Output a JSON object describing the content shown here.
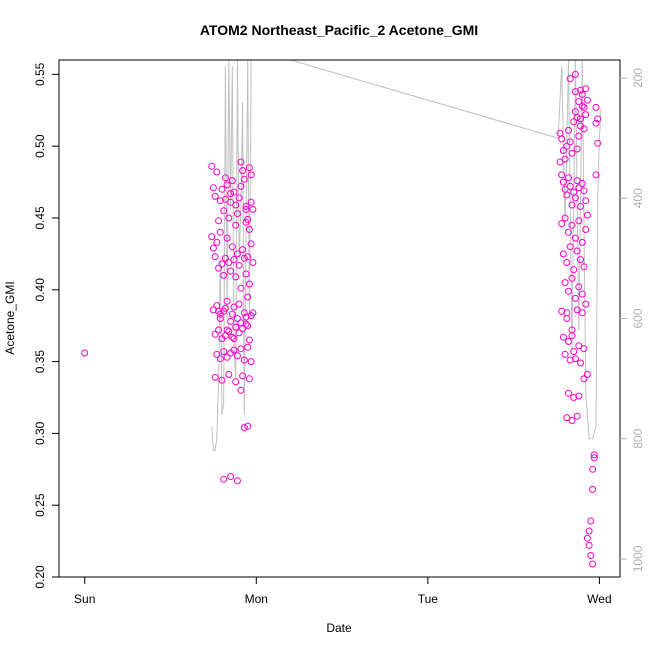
{
  "chart_data": {
    "type": "scatter",
    "title": "ATOM2 Northeast_Pacific_2 Acetone_GMI",
    "xlabel": "Date",
    "ylabel": "Acetone_GMI",
    "x_ticks": [
      "Sun",
      "Mon",
      "Tue",
      "Wed"
    ],
    "x_range_days": [
      -0.15,
      3.12
    ],
    "ylim": [
      0.2,
      0.56
    ],
    "y_ticks": [
      "0.20",
      "0.25",
      "0.30",
      "0.35",
      "0.40",
      "0.45",
      "0.50",
      "0.55"
    ],
    "y2_ticks": [
      "200",
      "400",
      "600",
      "800",
      "1000"
    ],
    "y2lim": [
      1030,
      170
    ],
    "y2_reversed": true,
    "grid": false,
    "colors": {
      "points": "#ff00cc",
      "pressure_line": "#c0c0c0",
      "axes": "#000000",
      "right_axis": "#b0b0b0"
    },
    "series": [
      {
        "x": [
          0.0,
          0.74,
          0.75,
          0.76,
          0.77,
          0.78,
          0.79,
          0.8,
          0.81,
          0.82,
          0.83,
          0.84,
          0.85,
          0.86,
          0.87,
          0.88,
          0.89,
          0.9,
          0.91,
          0.92,
          0.93,
          0.94,
          0.95,
          0.96,
          0.97,
          0.98,
          0.74,
          0.75,
          0.76,
          0.77,
          0.78,
          0.79,
          0.8,
          0.81,
          0.82,
          0.83,
          0.84,
          0.85,
          0.86,
          0.87,
          0.88,
          0.89,
          0.9,
          0.91,
          0.92,
          0.93,
          0.94,
          0.95,
          0.96,
          0.97,
          0.98,
          0.75,
          0.77,
          0.79,
          0.81,
          0.83,
          0.85,
          0.87,
          0.89,
          0.91,
          0.93,
          0.95,
          0.97,
          0.76,
          0.78,
          0.8,
          0.82,
          0.84,
          0.86,
          0.88,
          0.9,
          0.92,
          0.94,
          0.96,
          0.77,
          0.79,
          0.81,
          0.83,
          0.85,
          0.87,
          0.89,
          0.91,
          0.93,
          0.95,
          0.97,
          0.76,
          0.8,
          0.84,
          0.88,
          0.92,
          0.96,
          0.78,
          0.82,
          0.86,
          0.9,
          0.94,
          0.98,
          0.82,
          0.85,
          0.88,
          0.91,
          0.94,
          0.97,
          0.79,
          0.83,
          0.87,
          0.91,
          0.95,
          0.81,
          0.85,
          0.89,
          0.93,
          0.95,
          0.96,
          0.94,
          2.77,
          2.78,
          2.79,
          2.8,
          2.81,
          2.82,
          2.83,
          2.84,
          2.85,
          2.86,
          2.87,
          2.88,
          2.89,
          2.9,
          2.91,
          2.92,
          2.93,
          2.77,
          2.78,
          2.79,
          2.8,
          2.81,
          2.82,
          2.83,
          2.84,
          2.85,
          2.86,
          2.87,
          2.88,
          2.89,
          2.9,
          2.91,
          2.92,
          2.93,
          2.78,
          2.8,
          2.82,
          2.84,
          2.86,
          2.88,
          2.9,
          2.92,
          2.79,
          2.81,
          2.83,
          2.85,
          2.87,
          2.89,
          2.91,
          2.8,
          2.82,
          2.84,
          2.86,
          2.88,
          2.9,
          2.92,
          2.78,
          2.81,
          2.84,
          2.87,
          2.9,
          2.79,
          2.82,
          2.85,
          2.88,
          2.91,
          2.8,
          2.83,
          2.86,
          2.89,
          2.81,
          2.84,
          2.87,
          2.82,
          2.85,
          2.88,
          2.91,
          2.83,
          2.86,
          2.89,
          2.86,
          2.88,
          2.9,
          2.92,
          2.87,
          2.89,
          2.91,
          2.81,
          2.84,
          2.93,
          2.96,
          2.97,
          2.97,
          2.96,
          2.95,
          2.94,
          2.93,
          2.94,
          2.95,
          2.96,
          2.98,
          2.99,
          2.98,
          2.99,
          2.98
        ],
        "y": [
          0.356,
          0.486,
          0.471,
          0.465,
          0.482,
          0.448,
          0.462,
          0.47,
          0.455,
          0.478,
          0.473,
          0.45,
          0.461,
          0.476,
          0.468,
          0.445,
          0.453,
          0.464,
          0.489,
          0.483,
          0.477,
          0.458,
          0.449,
          0.442,
          0.48,
          0.456,
          0.437,
          0.429,
          0.423,
          0.433,
          0.415,
          0.44,
          0.418,
          0.41,
          0.422,
          0.436,
          0.419,
          0.413,
          0.43,
          0.421,
          0.409,
          0.425,
          0.417,
          0.401,
          0.428,
          0.422,
          0.411,
          0.395,
          0.404,
          0.432,
          0.419,
          0.386,
          0.389,
          0.383,
          0.385,
          0.392,
          0.378,
          0.388,
          0.38,
          0.377,
          0.384,
          0.375,
          0.382,
          0.369,
          0.372,
          0.366,
          0.368,
          0.371,
          0.367,
          0.374,
          0.37,
          0.373,
          0.376,
          0.365,
          0.355,
          0.352,
          0.357,
          0.353,
          0.356,
          0.358,
          0.354,
          0.359,
          0.351,
          0.36,
          0.35,
          0.339,
          0.337,
          0.341,
          0.336,
          0.34,
          0.338,
          0.385,
          0.387,
          0.383,
          0.39,
          0.381,
          0.384,
          0.463,
          0.467,
          0.459,
          0.472,
          0.456,
          0.461,
          0.38,
          0.372,
          0.366,
          0.33,
          0.305,
          0.268,
          0.27,
          0.267,
          0.304,
          0.423,
          0.485,
          0.447,
          0.489,
          0.48,
          0.475,
          0.47,
          0.466,
          0.478,
          0.472,
          0.459,
          0.468,
          0.464,
          0.476,
          0.471,
          0.458,
          0.474,
          0.469,
          0.462,
          0.452,
          0.509,
          0.505,
          0.497,
          0.491,
          0.5,
          0.511,
          0.503,
          0.495,
          0.517,
          0.524,
          0.498,
          0.507,
          0.519,
          0.536,
          0.527,
          0.54,
          0.532,
          0.446,
          0.45,
          0.44,
          0.445,
          0.436,
          0.448,
          0.433,
          0.442,
          0.425,
          0.419,
          0.43,
          0.414,
          0.427,
          0.421,
          0.416,
          0.405,
          0.399,
          0.408,
          0.394,
          0.402,
          0.397,
          0.39,
          0.385,
          0.38,
          0.372,
          0.386,
          0.384,
          0.367,
          0.364,
          0.357,
          0.361,
          0.359,
          0.355,
          0.351,
          0.352,
          0.349,
          0.311,
          0.309,
          0.312,
          0.328,
          0.325,
          0.326,
          0.338,
          0.547,
          0.55,
          0.539,
          0.538,
          0.531,
          0.528,
          0.522,
          0.52,
          0.514,
          0.512,
          0.384,
          0.368,
          0.341,
          0.275,
          0.285,
          0.283,
          0.261,
          0.239,
          0.232,
          0.227,
          0.222,
          0.215,
          0.209,
          0.527,
          0.519,
          0.516,
          0.502,
          0.48
        ]
      },
      {
        "name": "",
        "role": "pressure_hPa_right_axis",
        "x": [
          0.74,
          0.75,
          0.76,
          0.77,
          0.78,
          0.79,
          0.8,
          0.81,
          0.82,
          0.83,
          0.84,
          0.85,
          0.86,
          0.87,
          0.88,
          0.89,
          0.9,
          0.91,
          0.92,
          0.93,
          0.94,
          0.95,
          0.96,
          0.97,
          0.98,
          1.2,
          2.76,
          2.78,
          2.8,
          2.82,
          2.84,
          2.86,
          2.88,
          2.9,
          2.92,
          2.94,
          2.96,
          2.98,
          2.99,
          3.0,
          3.01
        ],
        "y": [
          780,
          820,
          820,
          800,
          700,
          500,
          760,
          740,
          180,
          600,
          170,
          420,
          180,
          640,
          700,
          170,
          500,
          420,
          240,
          760,
          460,
          170,
          600,
          170,
          170,
          170,
          300,
          180,
          440,
          170,
          650,
          170,
          620,
          170,
          720,
          800,
          800,
          780,
          400,
          300,
          250
        ]
      }
    ]
  }
}
